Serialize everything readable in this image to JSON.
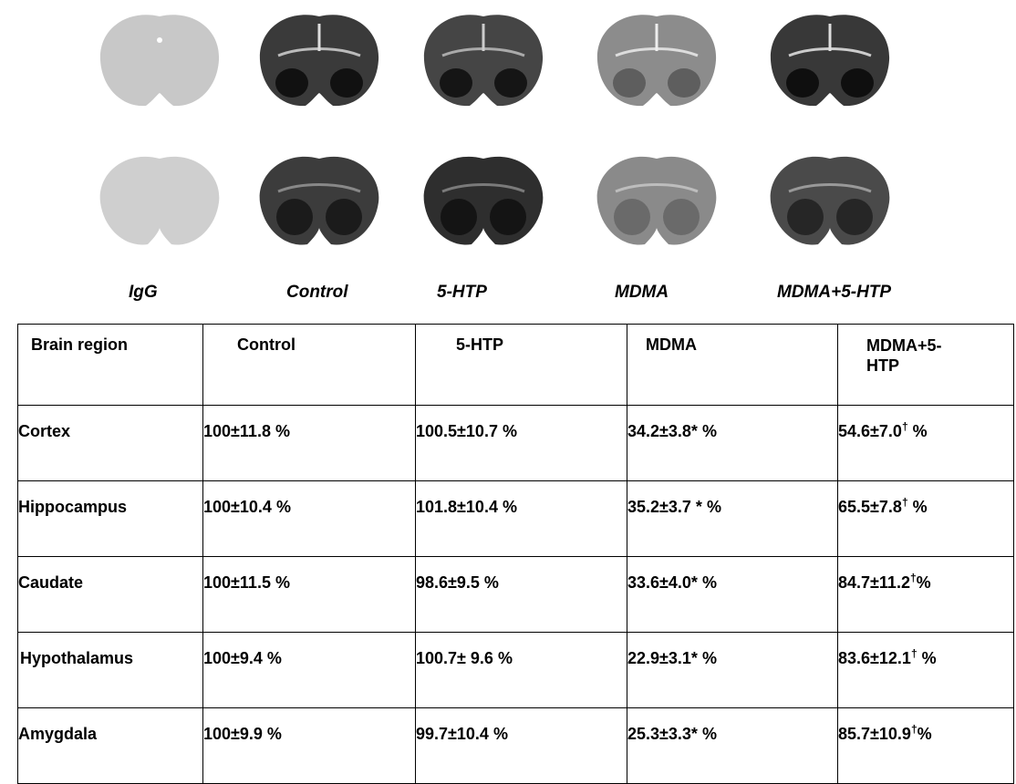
{
  "groups": [
    "IgG",
    "Control",
    "5-HTP",
    "MDMA",
    "MDMA+5-HTP"
  ],
  "table": {
    "headers": [
      "Brain region",
      "Control",
      "5-HTP",
      "MDMA",
      "MDMA+5-HTP"
    ],
    "rows": [
      {
        "region": "Cortex",
        "control": "100±11.8 %",
        "htp": "100.5±10.7 %",
        "mdma": "34.2±3.8* %",
        "combo_value": "54.6±7.0",
        "combo_mark": "†",
        "combo_suffix": " %"
      },
      {
        "region": "Hippocampus",
        "control": "100±10.4 %",
        "htp": "101.8±10.4 %",
        "mdma": "35.2±3.7 * %",
        "combo_value": "65.5±7.8",
        "combo_mark": "†",
        "combo_suffix": " %"
      },
      {
        "region": "Caudate",
        "control": "100±11.5 %",
        "htp": "98.6±9.5 %",
        "mdma": "33.6±4.0* %",
        "combo_value": "84.7±11.2",
        "combo_mark": "†",
        "combo_suffix": "%"
      },
      {
        "region": "Hypothalamus",
        "control": "100±9.4 %",
        "htp": "100.7± 9.6 %",
        "mdma": "22.9±3.1* %",
        "combo_value": "83.6±12.1",
        "combo_mark": "†",
        "combo_suffix": " %"
      },
      {
        "region": "Amygdala",
        "control": "100±9.9 %",
        "htp": "99.7±10.4 %",
        "mdma": "25.3±3.3* %",
        "combo_value": "85.7±10.9",
        "combo_mark": "†",
        "combo_suffix": "%"
      }
    ]
  }
}
